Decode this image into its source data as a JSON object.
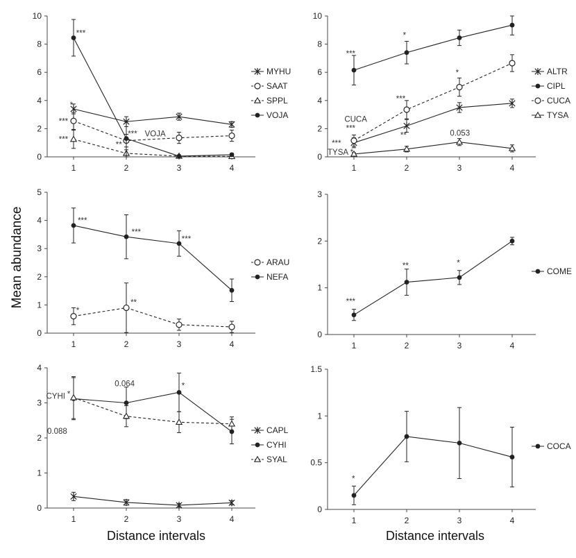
{
  "figure": {
    "ylabel": "Mean abundance",
    "xlabel_left": "Distance intervals",
    "xlabel_right": "Distance intervals"
  },
  "chart_data": [
    {
      "id": "p1",
      "type": "line",
      "x": [
        1,
        2,
        3,
        4
      ],
      "ylim": [
        0,
        10
      ],
      "yticks": [
        0,
        2,
        4,
        6,
        8,
        10
      ],
      "xlabel": "",
      "ylabel": "",
      "legend": "right",
      "series": [
        {
          "name": "MYHU",
          "marker": "star",
          "dash": false,
          "values": [
            3.4,
            2.5,
            2.85,
            2.3
          ],
          "err": [
            0.35,
            0.35,
            0.25,
            0.2
          ]
        },
        {
          "name": "SAAT",
          "marker": "circle-open",
          "dash": true,
          "values": [
            2.55,
            1.15,
            1.35,
            1.5
          ],
          "err": [
            0.6,
            0.45,
            0.4,
            0.4
          ]
        },
        {
          "name": "SPPL",
          "marker": "triangle-open",
          "dash": true,
          "values": [
            1.25,
            0.25,
            0.05,
            0.03
          ],
          "err": [
            0.65,
            0.25,
            0.05,
            0.03
          ]
        },
        {
          "name": "VOJA",
          "marker": "dot",
          "dash": false,
          "values": [
            8.45,
            1.3,
            0.05,
            0.15
          ],
          "err": [
            1.3,
            1.2,
            0.05,
            0.1
          ]
        }
      ],
      "annotations": [
        {
          "text": "***",
          "x": 1.05,
          "y": 8.6
        },
        {
          "text": "*",
          "x": 0.93,
          "y": 3.5
        },
        {
          "text": "***",
          "x": 0.72,
          "y": 2.35
        },
        {
          "text": "***",
          "x": 0.72,
          "y": 1.05
        },
        {
          "text": "***",
          "x": 2.03,
          "y": 1.45
        },
        {
          "text": "VOJA",
          "x": 2.35,
          "y": 1.45
        },
        {
          "text": "**",
          "x": 1.8,
          "y": 0.7
        }
      ]
    },
    {
      "id": "p2",
      "type": "line",
      "x": [
        1,
        2,
        3,
        4
      ],
      "ylim": [
        0,
        10
      ],
      "yticks": [
        0,
        2,
        4,
        6,
        8,
        10
      ],
      "xlabel": "",
      "ylabel": "",
      "legend": "right",
      "series": [
        {
          "name": "ALTR",
          "marker": "star",
          "dash": false,
          "values": [
            1.0,
            2.2,
            3.5,
            3.8
          ],
          "err": [
            0.35,
            0.45,
            0.35,
            0.3
          ]
        },
        {
          "name": "CIPL",
          "marker": "dot",
          "dash": false,
          "values": [
            6.15,
            7.4,
            8.45,
            9.35
          ],
          "err": [
            1.05,
            0.8,
            0.55,
            0.7
          ]
        },
        {
          "name": "CUCA",
          "marker": "circle-open",
          "dash": true,
          "values": [
            1.15,
            3.35,
            4.95,
            6.65
          ],
          "err": [
            0.4,
            0.65,
            0.65,
            0.6
          ]
        },
        {
          "name": "TYSA",
          "marker": "triangle-open",
          "dash": false,
          "values": [
            0.2,
            0.55,
            1.05,
            0.6
          ],
          "err": [
            0.1,
            0.2,
            0.25,
            0.25
          ]
        }
      ],
      "annotations": [
        {
          "text": "***",
          "x": 0.85,
          "y": 7.15
        },
        {
          "text": "*",
          "x": 1.93,
          "y": 8.45
        },
        {
          "text": "*",
          "x": 2.93,
          "y": 5.8
        },
        {
          "text": "***",
          "x": 1.8,
          "y": 3.95
        },
        {
          "text": "CUCA",
          "x": 0.82,
          "y": 2.5
        },
        {
          "text": "***",
          "x": 0.85,
          "y": 1.85
        },
        {
          "text": "**",
          "x": 1.88,
          "y": 1.35
        },
        {
          "text": "0.053",
          "x": 2.82,
          "y": 1.5
        },
        {
          "text": "***",
          "x": 0.58,
          "y": 0.8
        },
        {
          "text": "TYSA",
          "x": 0.5,
          "y": 0.15
        },
        {
          "text": "*",
          "x": 0.93,
          "y": 0.15
        }
      ]
    },
    {
      "id": "p3",
      "type": "line",
      "x": [
        1,
        2,
        3,
        4
      ],
      "ylim": [
        0,
        5
      ],
      "yticks": [
        0,
        1,
        2,
        3,
        4,
        5
      ],
      "xlabel": "",
      "ylabel": "",
      "legend": "right",
      "series": [
        {
          "name": "ARAU",
          "marker": "circle-open",
          "dash": true,
          "values": [
            0.6,
            0.9,
            0.3,
            0.22
          ],
          "err": [
            0.3,
            0.88,
            0.2,
            0.2
          ]
        },
        {
          "name": "NEFA",
          "marker": "dot",
          "dash": false,
          "values": [
            3.82,
            3.42,
            3.18,
            1.52
          ],
          "err": [
            0.62,
            0.78,
            0.45,
            0.4
          ]
        }
      ],
      "annotations": [
        {
          "text": "***",
          "x": 1.08,
          "y": 3.9
        },
        {
          "text": "***",
          "x": 2.1,
          "y": 3.5
        },
        {
          "text": "***",
          "x": 3.05,
          "y": 3.25
        },
        {
          "text": "*",
          "x": 1.05,
          "y": 0.72
        },
        {
          "text": "**",
          "x": 2.08,
          "y": 1.0
        }
      ]
    },
    {
      "id": "p4",
      "type": "line",
      "x": [
        1,
        2,
        3,
        4
      ],
      "ylim": [
        0,
        3
      ],
      "yticks": [
        0,
        1,
        2,
        3
      ],
      "xlabel": "",
      "ylabel": "",
      "legend": "right",
      "series": [
        {
          "name": "COME",
          "marker": "dot",
          "dash": false,
          "values": [
            0.42,
            1.12,
            1.22,
            2.0
          ],
          "err": [
            0.12,
            0.28,
            0.15,
            0.08
          ]
        }
      ],
      "annotations": [
        {
          "text": "***",
          "x": 0.85,
          "y": 0.65
        },
        {
          "text": "**",
          "x": 1.92,
          "y": 1.42
        },
        {
          "text": "*",
          "x": 2.95,
          "y": 1.48
        }
      ]
    },
    {
      "id": "p5",
      "type": "line",
      "x": [
        1,
        2,
        3,
        4
      ],
      "ylim": [
        0,
        4
      ],
      "yticks": [
        0,
        1,
        2,
        3,
        4
      ],
      "xlabel": "",
      "ylabel": "",
      "legend": "right",
      "series": [
        {
          "name": "CAPL",
          "marker": "star",
          "dash": false,
          "values": [
            0.33,
            0.16,
            0.08,
            0.15
          ],
          "err": [
            0.12,
            0.08,
            0.05,
            0.06
          ]
        },
        {
          "name": "CYHI",
          "marker": "dot",
          "dash": false,
          "values": [
            3.12,
            3.0,
            3.3,
            2.18
          ],
          "err": [
            0.6,
            0.45,
            0.55,
            0.35
          ]
        },
        {
          "name": "SYAL",
          "marker": "triangle-open",
          "dash": true,
          "values": [
            3.15,
            2.62,
            2.45,
            2.4
          ],
          "err": [
            0.6,
            0.3,
            0.3,
            0.2
          ]
        }
      ],
      "annotations": [
        {
          "text": "0.064",
          "x": 1.78,
          "y": 3.48
        },
        {
          "text": "*",
          "x": 3.05,
          "y": 3.42
        },
        {
          "text": "CYHI",
          "x": 0.48,
          "y": 3.12
        },
        {
          "text": "*",
          "x": 0.88,
          "y": 3.18
        },
        {
          "text": "0.088",
          "x": 0.5,
          "y": 2.12
        }
      ]
    },
    {
      "id": "p6",
      "type": "line",
      "x": [
        1,
        2,
        3,
        4
      ],
      "ylim": [
        0,
        1.5
      ],
      "yticks": [
        0,
        0.5,
        1,
        1.5
      ],
      "ytick_labels": [
        "0",
        "0.5",
        "1",
        "1.5"
      ],
      "xlabel": "",
      "ylabel": "",
      "legend": "right",
      "series": [
        {
          "name": "COCA",
          "marker": "dot",
          "dash": false,
          "values": [
            0.15,
            0.78,
            0.71,
            0.56
          ],
          "err": [
            0.1,
            0.27,
            0.38,
            0.32
          ]
        }
      ],
      "annotations": [
        {
          "text": "*",
          "x": 0.96,
          "y": 0.3
        }
      ]
    }
  ],
  "layout_note_colors": {
    "line": "#222222",
    "axis": "#444444",
    "annotation": "#333333"
  }
}
